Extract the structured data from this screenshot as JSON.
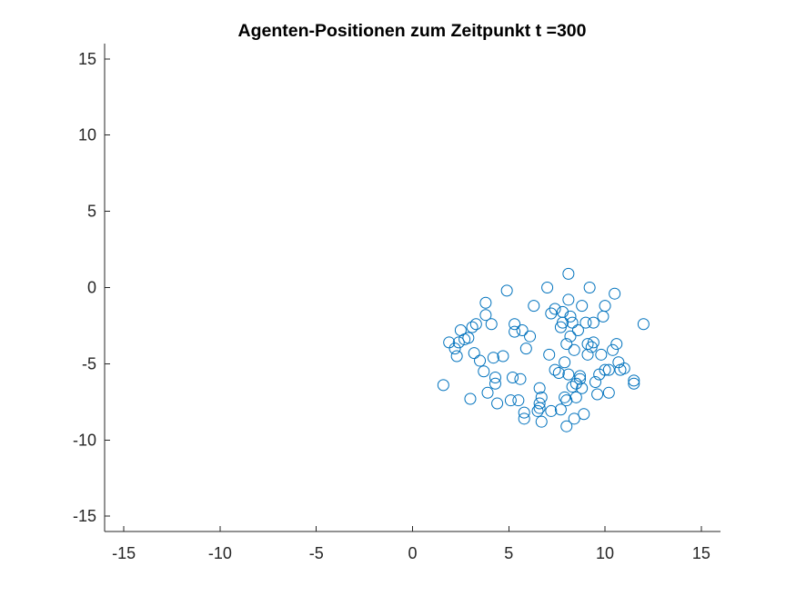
{
  "chart_data": {
    "type": "scatter",
    "title": "Agenten-Positionen zum Zeitpunkt t =300",
    "xlabel": "",
    "ylabel": "",
    "xlim": [
      -16,
      16
    ],
    "ylim": [
      -16,
      16
    ],
    "xticks": [
      -15,
      -10,
      -5,
      0,
      5,
      10,
      15
    ],
    "yticks": [
      -15,
      -10,
      -5,
      0,
      5,
      10,
      15
    ],
    "xtick_labels": [
      "-15",
      "-10",
      "-5",
      "0",
      "5",
      "10",
      "15"
    ],
    "ytick_labels": [
      "-15",
      "-10",
      "-5",
      "0",
      "5",
      "10",
      "15"
    ],
    "grid": false,
    "marker": "circle",
    "series_color": "#0072BD",
    "points": [
      [
        1.6,
        -6.4
      ],
      [
        1.9,
        -3.6
      ],
      [
        2.2,
        -4.0
      ],
      [
        2.3,
        -4.5
      ],
      [
        2.4,
        -3.6
      ],
      [
        2.5,
        -2.8
      ],
      [
        2.7,
        -3.4
      ],
      [
        2.9,
        -3.3
      ],
      [
        3.0,
        -7.3
      ],
      [
        3.1,
        -2.6
      ],
      [
        3.2,
        -4.3
      ],
      [
        3.3,
        -2.4
      ],
      [
        3.5,
        -4.8
      ],
      [
        3.7,
        -5.5
      ],
      [
        3.8,
        -1.8
      ],
      [
        3.8,
        -1.0
      ],
      [
        3.9,
        -6.9
      ],
      [
        4.1,
        -2.4
      ],
      [
        4.2,
        -4.6
      ],
      [
        4.3,
        -5.9
      ],
      [
        4.3,
        -6.3
      ],
      [
        4.4,
        -7.6
      ],
      [
        4.7,
        -4.5
      ],
      [
        4.9,
        -0.2
      ],
      [
        5.1,
        -7.4
      ],
      [
        5.2,
        -5.9
      ],
      [
        5.3,
        -2.4
      ],
      [
        5.3,
        -2.9
      ],
      [
        5.5,
        -7.4
      ],
      [
        5.6,
        -6.0
      ],
      [
        5.7,
        -2.8
      ],
      [
        5.8,
        -8.2
      ],
      [
        5.8,
        -8.6
      ],
      [
        5.9,
        -4.0
      ],
      [
        6.1,
        -3.2
      ],
      [
        6.3,
        -1.2
      ],
      [
        6.5,
        -8.1
      ],
      [
        6.6,
        -6.6
      ],
      [
        6.6,
        -7.6
      ],
      [
        6.6,
        -7.9
      ],
      [
        6.7,
        -7.2
      ],
      [
        6.7,
        -8.8
      ],
      [
        7.0,
        0.0
      ],
      [
        7.1,
        -4.4
      ],
      [
        7.2,
        -8.1
      ],
      [
        7.2,
        -1.7
      ],
      [
        7.4,
        -1.4
      ],
      [
        7.4,
        -5.4
      ],
      [
        7.6,
        -5.6
      ],
      [
        7.7,
        -2.6
      ],
      [
        7.7,
        -8.0
      ],
      [
        7.8,
        -2.3
      ],
      [
        7.8,
        -1.6
      ],
      [
        7.9,
        -4.9
      ],
      [
        7.9,
        -7.2
      ],
      [
        8.0,
        -3.7
      ],
      [
        8.0,
        -7.4
      ],
      [
        8.0,
        -9.1
      ],
      [
        8.1,
        -0.8
      ],
      [
        8.1,
        0.9
      ],
      [
        8.1,
        -5.7
      ],
      [
        8.2,
        -1.9
      ],
      [
        8.2,
        -3.2
      ],
      [
        8.3,
        -2.3
      ],
      [
        8.3,
        -6.5
      ],
      [
        8.4,
        -4.1
      ],
      [
        8.4,
        -8.6
      ],
      [
        8.5,
        -7.2
      ],
      [
        8.5,
        -6.3
      ],
      [
        8.6,
        -2.8
      ],
      [
        8.7,
        -6.0
      ],
      [
        8.7,
        -5.8
      ],
      [
        8.8,
        -6.6
      ],
      [
        8.8,
        -1.2
      ],
      [
        8.9,
        -8.3
      ],
      [
        9.0,
        -2.3
      ],
      [
        9.1,
        -3.7
      ],
      [
        9.1,
        -4.4
      ],
      [
        9.2,
        0.0
      ],
      [
        9.3,
        -3.9
      ],
      [
        9.4,
        -2.3
      ],
      [
        9.4,
        -3.6
      ],
      [
        9.5,
        -6.2
      ],
      [
        9.6,
        -7.0
      ],
      [
        9.7,
        -5.7
      ],
      [
        9.8,
        -4.4
      ],
      [
        9.9,
        -1.9
      ],
      [
        10.0,
        -1.2
      ],
      [
        10.0,
        -5.4
      ],
      [
        10.2,
        -5.4
      ],
      [
        10.2,
        -6.9
      ],
      [
        10.4,
        -4.1
      ],
      [
        10.5,
        -0.4
      ],
      [
        10.6,
        -3.7
      ],
      [
        10.7,
        -4.9
      ],
      [
        10.8,
        -5.4
      ],
      [
        11.0,
        -5.3
      ],
      [
        11.5,
        -6.1
      ],
      [
        11.5,
        -6.3
      ],
      [
        12.0,
        -2.4
      ]
    ]
  }
}
